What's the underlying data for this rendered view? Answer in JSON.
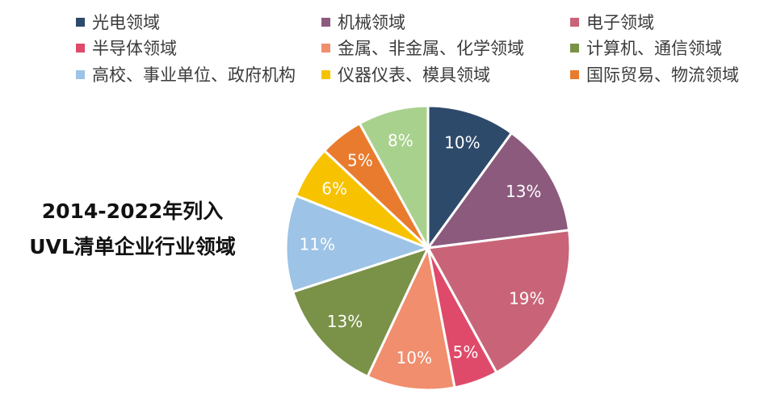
{
  "chart_data": {
    "type": "pie",
    "title_lines": [
      "2014-2022年列入",
      "UVL清单企业行业领域"
    ],
    "legend_placement": "top",
    "slices": [
      {
        "label": "光电领域",
        "value": 10,
        "value_label": "10%",
        "color": "#2e4a6b"
      },
      {
        "label": "机械领域",
        "value": 13,
        "value_label": "13%",
        "color": "#8c5a7d"
      },
      {
        "label": "电子领域",
        "value": 19,
        "value_label": "19%",
        "color": "#c96478"
      },
      {
        "label": "半导体领域",
        "value": 5,
        "value_label": "5%",
        "color": "#df4a6a"
      },
      {
        "label": "金属、非金属、化学领域",
        "value": 10,
        "value_label": "10%",
        "color": "#f08e6e"
      },
      {
        "label": "计算机、通信领域",
        "value": 13,
        "value_label": "13%",
        "color": "#7a9148"
      },
      {
        "label": "高校、事业单位、政府机构",
        "value": 11,
        "value_label": "11%",
        "color": "#9dc3e6"
      },
      {
        "label": "仪器仪表、模具领域",
        "value": 6,
        "value_label": "6%",
        "color": "#f7c200"
      },
      {
        "label": "国际贸易、物流领域",
        "value": 5,
        "value_label": "5%",
        "color": "#e97b2e"
      },
      {
        "label": "",
        "value": 8,
        "value_label": "8%",
        "color": "#a9d18e"
      }
    ]
  }
}
